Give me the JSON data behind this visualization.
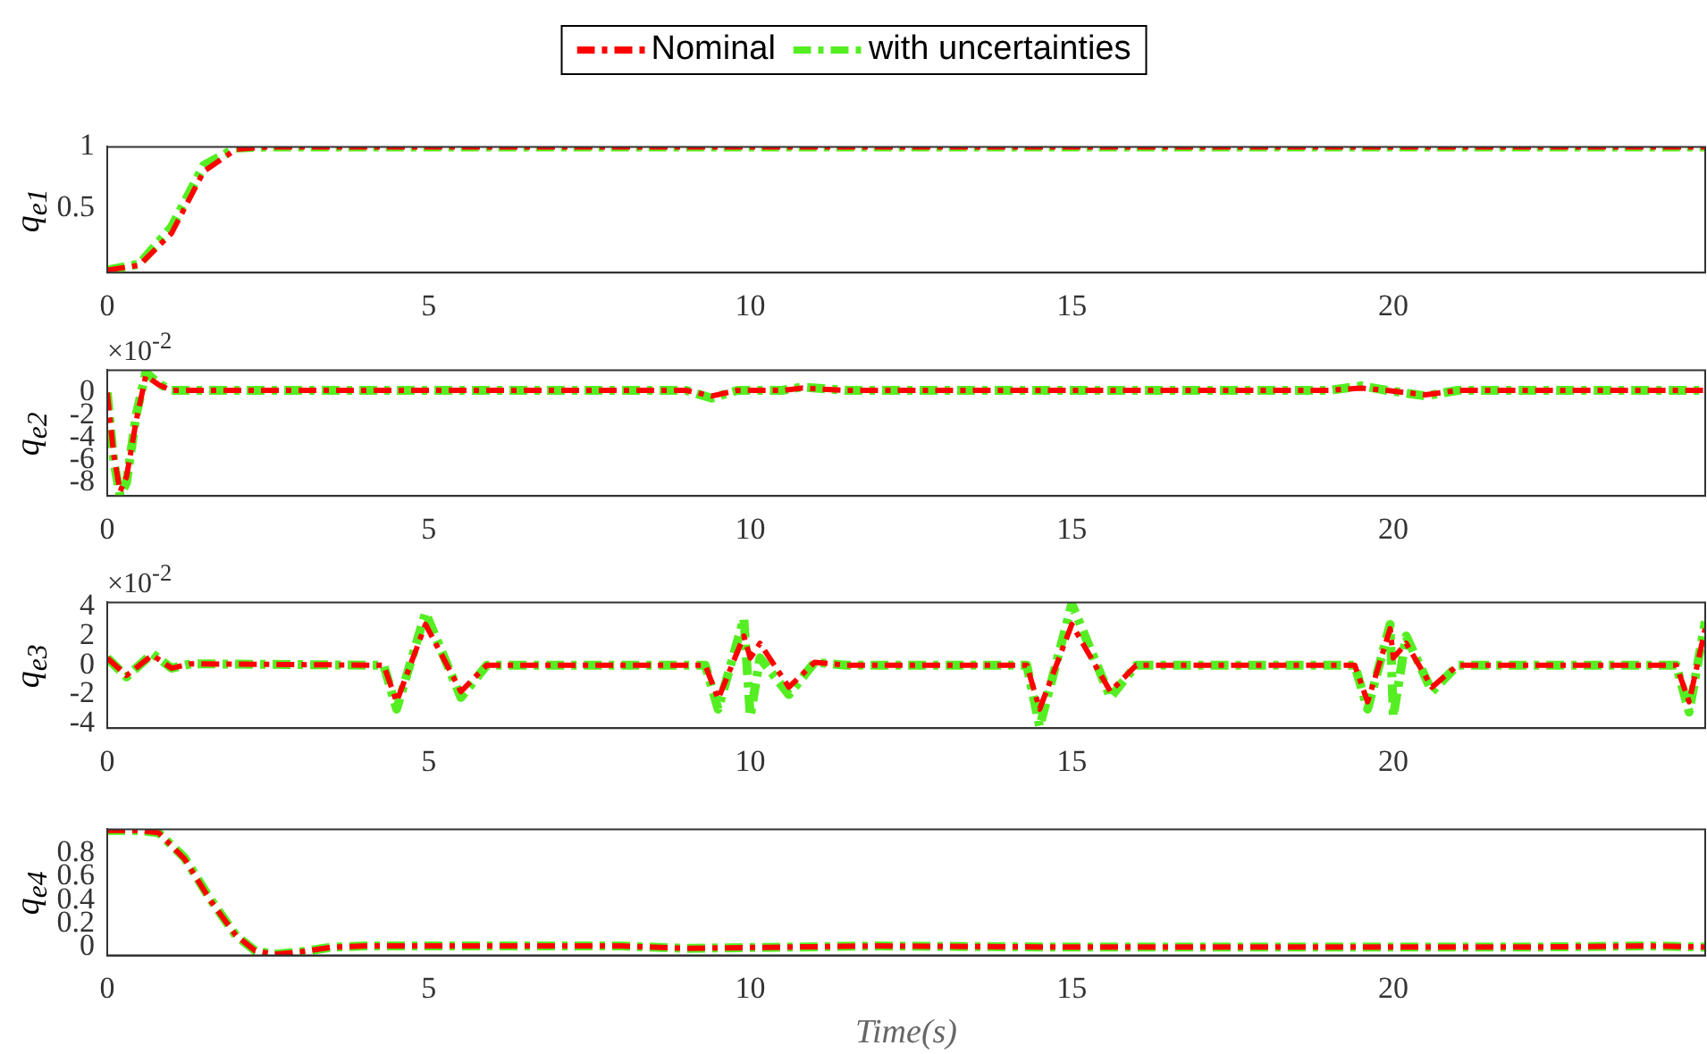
{
  "chart_data": [
    {
      "type": "line",
      "ylabel": "q$_{e1}$",
      "legend": "top",
      "line_style": "dashed",
      "xlim": [
        0,
        24.85
      ],
      "xticks": [
        0,
        5,
        10,
        15,
        20
      ],
      "ylim": [
        -0.02,
        1
      ],
      "yticks": [
        0.5,
        1
      ],
      "x": [
        0,
        0.5,
        1,
        1.5,
        2,
        2.5,
        24.85
      ],
      "series": [
        {
          "name": "Nominal",
          "color": "#ff0000",
          "values": [
            0,
            0.04,
            0.3,
            0.8,
            0.98,
            1,
            1
          ]
        },
        {
          "name": "with uncertainties",
          "color": "#55ee22",
          "values": [
            0,
            0.05,
            0.35,
            0.85,
            0.99,
            1,
            1
          ]
        }
      ]
    },
    {
      "type": "line",
      "ylabel": "q$_{e2}$",
      "annotations": [
        "×10$^{-2}$"
      ],
      "line_style": "dashed",
      "xlim": [
        0,
        24.85
      ],
      "xticks": [
        0,
        5,
        10,
        15,
        20
      ],
      "ylim": [
        -9.2,
        2
      ],
      "yticks": [
        -8,
        -6,
        -4,
        -2,
        0
      ],
      "x": [
        0,
        0.1,
        0.2,
        0.3,
        0.45,
        0.6,
        0.8,
        1.0,
        1.5,
        5,
        9,
        9.4,
        9.8,
        10.5,
        10.8,
        11.5,
        15,
        19,
        19.5,
        19.9,
        20.5,
        21,
        24.85
      ],
      "series": [
        {
          "color": "#ff0000",
          "values": [
            0,
            -5.5,
            -8.8,
            -7.5,
            -2.5,
            1.5,
            0.7,
            0.2,
            0.2,
            0.2,
            0.2,
            -0.3,
            0.2,
            0.2,
            0.4,
            0.2,
            0.2,
            0.2,
            0.4,
            0.2,
            -0.2,
            0.2,
            0.2
          ]
        },
        {
          "color": "#55ee22",
          "values": [
            0,
            -6,
            -9.2,
            -8,
            -2,
            1.8,
            0.8,
            0.2,
            0.2,
            0.2,
            0.2,
            -0.5,
            0.2,
            0.2,
            0.5,
            0.2,
            0.2,
            0.2,
            0.6,
            0.2,
            -0.3,
            0.2,
            0.2
          ]
        }
      ]
    },
    {
      "type": "line",
      "ylabel": "q$_{e3}$",
      "annotations": [
        "×10$^{-2}$"
      ],
      "line_style": "dashed",
      "xlim": [
        0,
        24.85
      ],
      "xticks": [
        0,
        5,
        10,
        15,
        20
      ],
      "ylim": [
        -4.3,
        4.3
      ],
      "yticks": [
        -4,
        -2,
        0,
        2,
        4
      ],
      "x": [
        0,
        0.3,
        0.7,
        1.0,
        1.3,
        4.3,
        4.5,
        4.95,
        5.5,
        5.9,
        9.3,
        9.5,
        9.9,
        10.0,
        10.15,
        10.6,
        11.0,
        11.5,
        14.3,
        14.5,
        15.0,
        15.6,
        16.0,
        19.4,
        19.6,
        19.95,
        20.0,
        20.2,
        20.6,
        21.0,
        24.4,
        24.6,
        24.85
      ],
      "series": [
        {
          "color": "#ff0000",
          "values": [
            0.5,
            -0.7,
            0.7,
            -0.2,
            0.1,
            0,
            -2.5,
            2.8,
            -1.8,
            0,
            0,
            -2.3,
            2,
            0.5,
            1.5,
            -1.5,
            0.2,
            0,
            0,
            -3,
            2.8,
            -1.8,
            0,
            0,
            -2.5,
            2.5,
            0.5,
            1.5,
            -1.5,
            0,
            0,
            -2.5,
            2.5
          ]
        },
        {
          "color": "#55ee22",
          "values": [
            0.5,
            -0.8,
            0.8,
            -0.2,
            0.1,
            0,
            -3,
            3.6,
            -2.2,
            0,
            0,
            -3,
            3.2,
            -3.5,
            0.5,
            -2,
            0.2,
            0,
            0,
            -4.2,
            4.2,
            -2.2,
            0,
            0,
            -3,
            2.8,
            -3.5,
            2,
            -1.8,
            0,
            0,
            -3.2,
            3
          ]
        }
      ]
    },
    {
      "type": "line",
      "ylabel": "q$_{e4}$",
      "xlabel": "Time(s)",
      "line_style": "dashed",
      "xlim": [
        0,
        24.85
      ],
      "xticks": [
        0,
        5,
        10,
        15,
        20
      ],
      "ylim": [
        -0.07,
        1
      ],
      "yticks": [
        0,
        0.2,
        0.4,
        0.6,
        0.8
      ],
      "x": [
        0,
        0.5,
        0.8,
        1.2,
        1.6,
        2.0,
        2.3,
        2.6,
        3.0,
        3.5,
        4,
        8,
        9,
        12,
        15,
        18,
        20,
        22,
        24,
        24.85
      ],
      "series": [
        {
          "color": "#ff0000",
          "values": [
            0.99,
            0.99,
            0.97,
            0.75,
            0.4,
            0.1,
            -0.03,
            -0.06,
            -0.04,
            0,
            0.01,
            0.01,
            -0.01,
            0.01,
            0,
            0,
            0,
            0,
            0.01,
            0
          ]
        },
        {
          "color": "#55ee22",
          "values": [
            0.99,
            0.99,
            0.97,
            0.76,
            0.41,
            0.1,
            -0.03,
            -0.06,
            -0.04,
            0,
            0.01,
            0.01,
            -0.01,
            0.01,
            0,
            0,
            0,
            0,
            0.01,
            0
          ]
        }
      ]
    }
  ]
}
